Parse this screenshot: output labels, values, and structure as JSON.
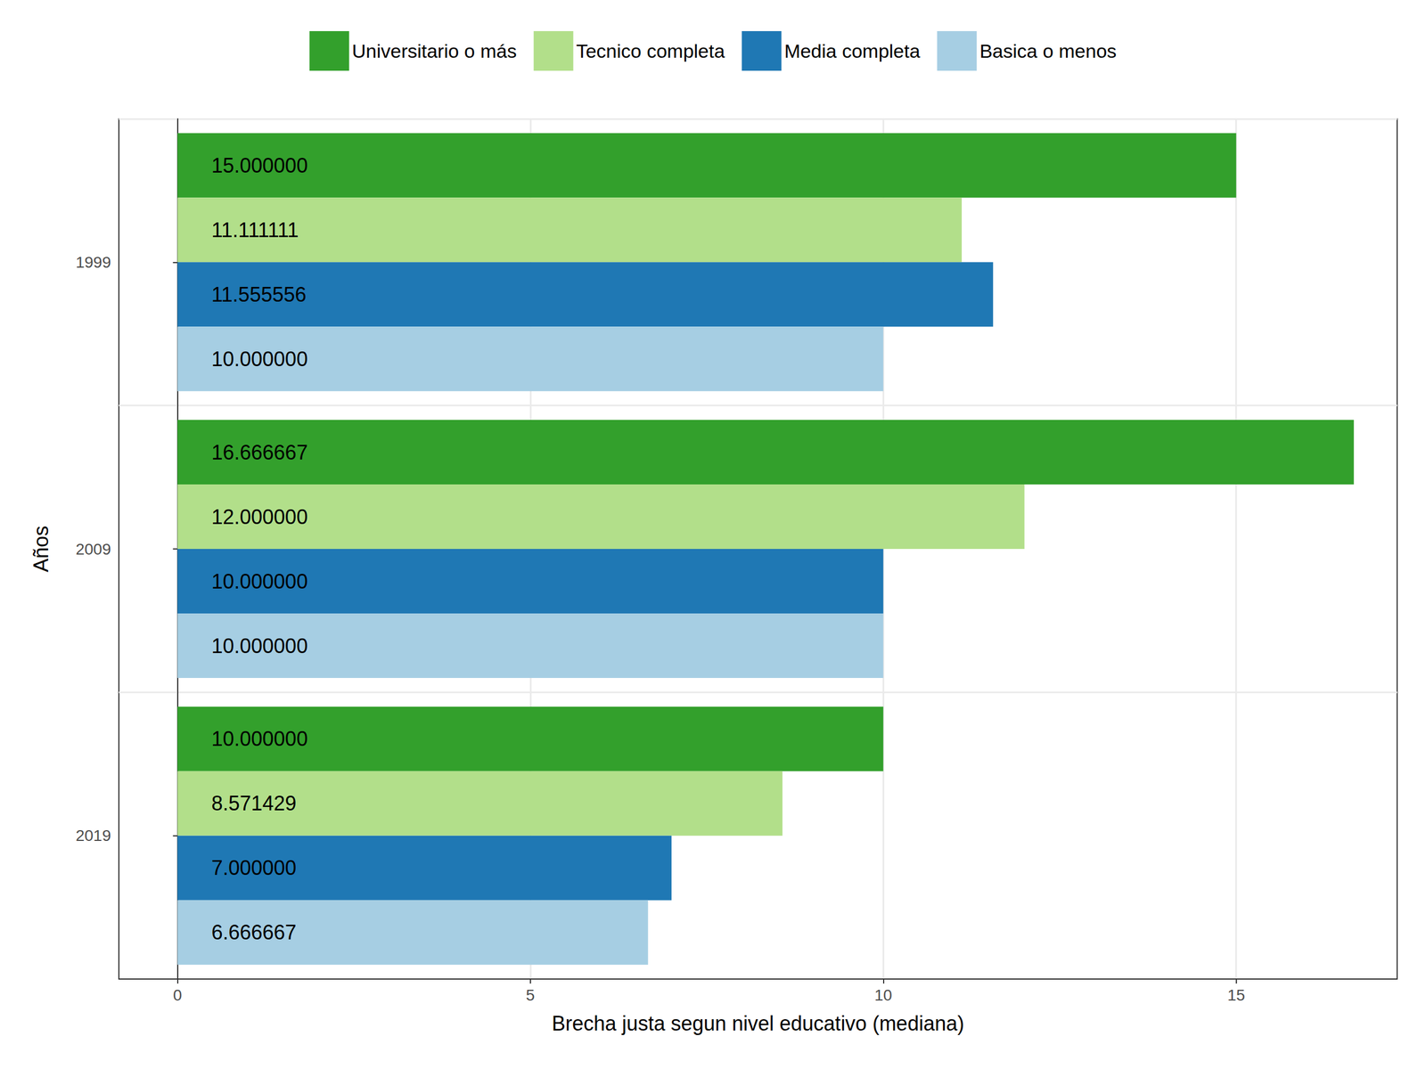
{
  "chart_data": {
    "type": "bar",
    "orientation": "horizontal",
    "xlabel": "Brecha justa segun nivel educativo (mediana)",
    "ylabel": "Años",
    "categories": [
      "1999",
      "2009",
      "2019"
    ],
    "series": [
      {
        "name": "Universitario o más",
        "color": "#33a02c",
        "values": [
          15.0,
          16.666667,
          10.0
        ],
        "value_labels": [
          "15.000000",
          "16.666667",
          "10.000000"
        ]
      },
      {
        "name": "Tecnico completa",
        "color": "#b2df8a",
        "values": [
          11.111111,
          12.0,
          8.571429
        ],
        "value_labels": [
          "11.111111",
          "12.000000",
          "8.571429"
        ]
      },
      {
        "name": "Media completa",
        "color": "#1f78b4",
        "values": [
          11.555556,
          10.0,
          7.0
        ],
        "value_labels": [
          "11.555556",
          "10.000000",
          "7.000000"
        ]
      },
      {
        "name": "Basica o menos",
        "color": "#a6cee3",
        "values": [
          10.0,
          10.0,
          6.666667
        ],
        "value_labels": [
          "10.000000",
          "10.000000",
          "6.666667"
        ]
      }
    ],
    "xlim": [
      -0.83,
      17.28
    ],
    "xticks": [
      0,
      5,
      10,
      15
    ],
    "grid": true,
    "legend": "top",
    "data_labels": true
  }
}
